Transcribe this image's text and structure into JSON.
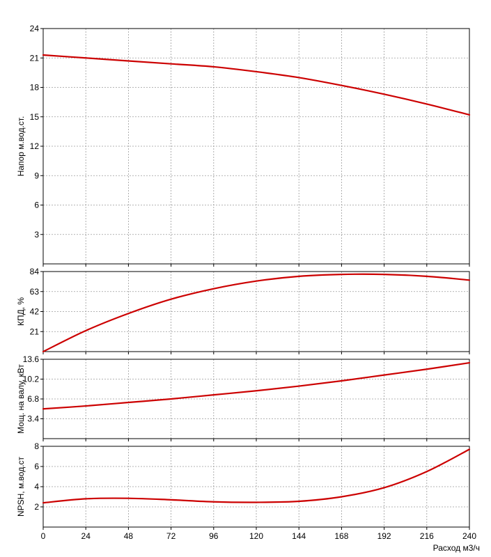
{
  "chart_data": [
    {
      "type": "line",
      "id": "head",
      "ylabel": "Напор м.вод.ст.",
      "xlim": [
        0,
        240
      ],
      "ylim": [
        0,
        24
      ],
      "yticks": [
        3,
        6,
        9,
        12,
        15,
        18,
        21,
        24
      ],
      "grid": true,
      "color": "#cc0000",
      "series": [
        {
          "x": [
            0,
            24,
            48,
            72,
            96,
            120,
            144,
            168,
            192,
            216,
            240
          ],
          "y": [
            21.3,
            21.0,
            20.7,
            20.4,
            20.1,
            19.6,
            19.0,
            18.2,
            17.3,
            16.3,
            15.2
          ]
        }
      ]
    },
    {
      "type": "line",
      "id": "efficiency",
      "ylabel": "КПД, %",
      "xlim": [
        0,
        240
      ],
      "ylim": [
        0,
        84
      ],
      "yticks": [
        21,
        42,
        63,
        84
      ],
      "grid": true,
      "color": "#cc0000",
      "series": [
        {
          "x": [
            0,
            24,
            48,
            72,
            96,
            120,
            144,
            168,
            192,
            216,
            240
          ],
          "y": [
            0,
            22,
            40,
            55,
            66,
            74,
            79,
            81,
            81,
            79,
            75
          ]
        }
      ]
    },
    {
      "type": "line",
      "id": "power",
      "ylabel": "Мощ. на валу, кВт",
      "xlim": [
        0,
        240
      ],
      "ylim": [
        0,
        13.6
      ],
      "yticks": [
        3.4,
        6.8,
        10.2,
        13.6
      ],
      "grid": true,
      "color": "#cc0000",
      "series": [
        {
          "x": [
            0,
            24,
            48,
            72,
            96,
            120,
            144,
            168,
            192,
            216,
            240
          ],
          "y": [
            5.1,
            5.6,
            6.2,
            6.8,
            7.5,
            8.2,
            9.0,
            9.9,
            10.9,
            11.9,
            13.0
          ]
        }
      ]
    },
    {
      "type": "line",
      "id": "npsh",
      "ylabel": "NPSH, м.вод.ст",
      "xlabel": "Расход м3/ч",
      "xlim": [
        0,
        240
      ],
      "ylim": [
        0,
        8
      ],
      "yticks": [
        2,
        4,
        6,
        8
      ],
      "xticks": [
        0,
        24,
        48,
        72,
        96,
        120,
        144,
        168,
        192,
        216,
        240
      ],
      "grid": true,
      "color": "#cc0000",
      "series": [
        {
          "x": [
            0,
            24,
            48,
            72,
            96,
            120,
            144,
            168,
            192,
            216,
            240
          ],
          "y": [
            2.4,
            2.8,
            2.85,
            2.7,
            2.5,
            2.45,
            2.55,
            3.0,
            3.9,
            5.5,
            7.7
          ]
        }
      ]
    }
  ]
}
